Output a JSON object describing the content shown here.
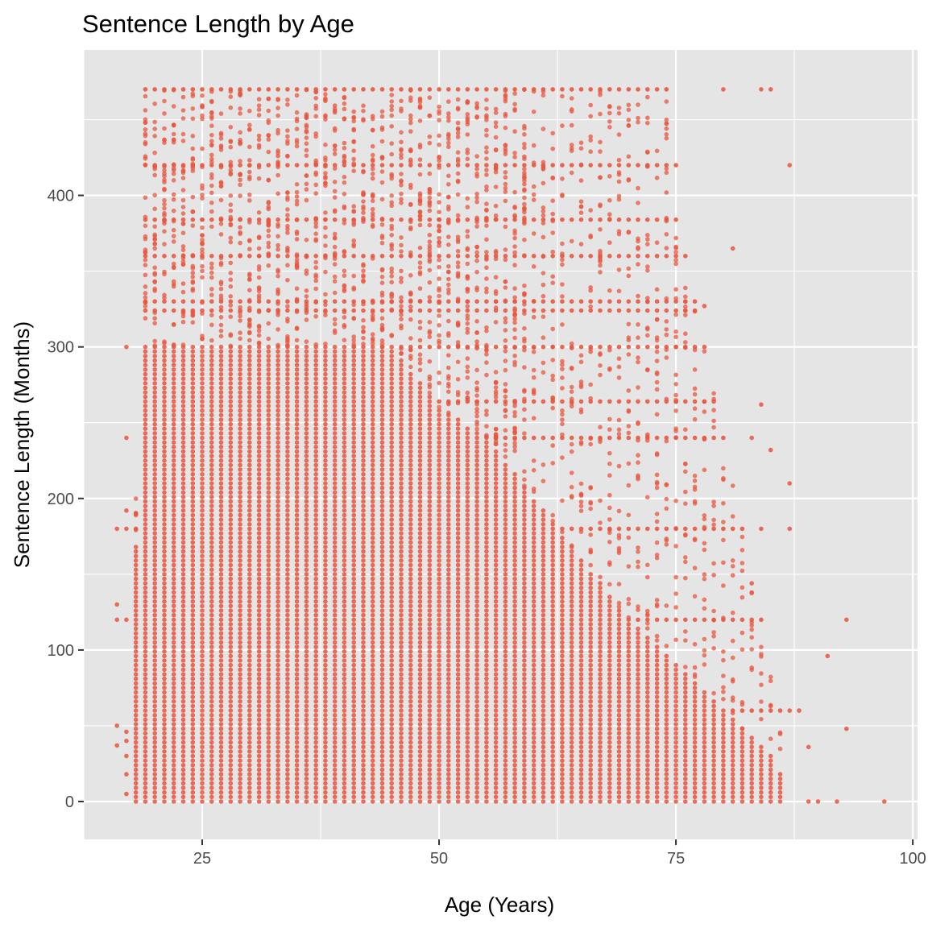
{
  "chart_data": {
    "type": "scatter",
    "title": "Sentence Length by Age",
    "xlabel": "Age (Years)",
    "ylabel": "Sentence Length (Months)",
    "xlim": [
      12.5,
      100.5
    ],
    "ylim": [
      -25,
      496
    ],
    "x_ticks": [
      25,
      50,
      75,
      100
    ],
    "y_ticks": [
      0,
      100,
      200,
      300,
      400
    ],
    "x_tick_labels": [
      "25",
      "50",
      "75",
      "100"
    ],
    "y_tick_labels": [
      "0",
      "100",
      "200",
      "300",
      "400"
    ],
    "grid": true,
    "legend": "none",
    "point_color": "#E8563F",
    "panel_color": "#E5E5E5",
    "series": [
      {
        "description_note": "",
        "age_range": [
          16,
          97
        ],
        "dense_columns": {
          "ages_start": 18,
          "ages_end": 86,
          "min_value": 0
        },
        "column_upper_envelope": [
          [
            18,
            200
          ],
          [
            19,
            470
          ],
          [
            20,
            470
          ],
          [
            25,
            470
          ],
          [
            30,
            470
          ],
          [
            35,
            470
          ],
          [
            40,
            470
          ],
          [
            45,
            470
          ],
          [
            50,
            470
          ],
          [
            55,
            470
          ],
          [
            60,
            470
          ],
          [
            65,
            470
          ],
          [
            70,
            470
          ],
          [
            72,
            470
          ],
          [
            74,
            470
          ],
          [
            75,
            420
          ],
          [
            76,
            360
          ],
          [
            77,
            330
          ],
          [
            78,
            300
          ],
          [
            80,
            240
          ],
          [
            82,
            180
          ],
          [
            84,
            120
          ],
          [
            86,
            60
          ],
          [
            88,
            0
          ],
          [
            97,
            0
          ]
        ],
        "dense_core_envelope": [
          [
            18,
            170
          ],
          [
            19,
            300
          ],
          [
            25,
            300
          ],
          [
            35,
            300
          ],
          [
            45,
            300
          ],
          [
            50,
            260
          ],
          [
            55,
            240
          ],
          [
            60,
            200
          ],
          [
            65,
            160
          ],
          [
            70,
            120
          ],
          [
            75,
            90
          ],
          [
            80,
            60
          ],
          [
            85,
            30
          ],
          [
            88,
            0
          ]
        ],
        "horizontal_bands": [
          470,
          420,
          384,
          360,
          330,
          324,
          300,
          264,
          240,
          180,
          120,
          60
        ],
        "outliers": [
          [
            16,
            130
          ],
          [
            16,
            120
          ],
          [
            16,
            180
          ],
          [
            16,
            50
          ],
          [
            16,
            37
          ],
          [
            17,
            300
          ],
          [
            17,
            240
          ],
          [
            17,
            192
          ],
          [
            17,
            180
          ],
          [
            17,
            120
          ],
          [
            17,
            46
          ],
          [
            17,
            40
          ],
          [
            17,
            30
          ],
          [
            17,
            18
          ],
          [
            17,
            5
          ],
          [
            80,
            470
          ],
          [
            84,
            470
          ],
          [
            85,
            470
          ],
          [
            87,
            420
          ],
          [
            81,
            365
          ],
          [
            78,
            327
          ],
          [
            84,
            262
          ],
          [
            85,
            232
          ],
          [
            83,
            240
          ],
          [
            87,
            210
          ],
          [
            84,
            180
          ],
          [
            87,
            180
          ],
          [
            83,
            144
          ],
          [
            93,
            120
          ],
          [
            91,
            96
          ],
          [
            93,
            48
          ],
          [
            89,
            36
          ],
          [
            87,
            60
          ],
          [
            88,
            60
          ],
          [
            92,
            0
          ],
          [
            97,
            0
          ],
          [
            90,
            0
          ],
          [
            89,
            0
          ]
        ]
      }
    ]
  }
}
